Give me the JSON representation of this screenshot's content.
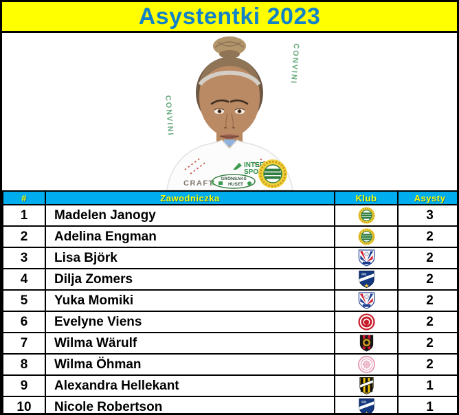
{
  "title": "Asystentki 2023",
  "photo": {
    "description": "portrait of player in white club shirt with green details",
    "jersey": {
      "sleeve_text": "CONVINI",
      "sponsor_top": "INTER",
      "sponsor_bottom": "SPORT",
      "oval_line1": "GRÖNSAKS",
      "oval_line2": "HUSET",
      "brand": "CRAFT"
    }
  },
  "table": {
    "headers": {
      "rank": "#",
      "player": "Zawodniczka",
      "club": "Klub",
      "assists": "Asysty"
    },
    "rows": [
      {
        "rank": "1",
        "player": "Madelen Janogy",
        "club_badge": "hammarby",
        "assists": "3"
      },
      {
        "rank": "2",
        "player": "Adelina Engman",
        "club_badge": "hammarby",
        "assists": "2"
      },
      {
        "rank": "3",
        "player": "Lisa Björk",
        "club_badge": "linkoping",
        "assists": "2"
      },
      {
        "rank": "4",
        "player": "Dilja Zomers",
        "club_badge": "ifk-norrkoping",
        "assists": "2"
      },
      {
        "rank": "5",
        "player": "Yuka Momiki",
        "club_badge": "linkoping",
        "assists": "2"
      },
      {
        "rank": "6",
        "player": "Evelyne Viens",
        "club_badge": "kristianstad",
        "assists": "2"
      },
      {
        "rank": "7",
        "player": "Wilma Wärulf",
        "club_badge": "brommapojkarna",
        "assists": "2"
      },
      {
        "rank": "8",
        "player": "Wilma Öhman",
        "club_badge": "uppsala-pink",
        "assists": "2"
      },
      {
        "rank": "9",
        "player": "Alexandra Hellekant",
        "club_badge": "hacken",
        "assists": "1"
      },
      {
        "rank": "10",
        "player": "Nicole Robertson",
        "club_badge": "ifk-norrkoping",
        "assists": "1"
      }
    ]
  },
  "badges": {
    "ifk_monogram": "IFK"
  },
  "colors": {
    "title_bg": "#FFFF00",
    "title_text": "#1181C8",
    "header_bg": "#00AEEF",
    "header_text": "#FFFF00",
    "border": "#000000",
    "row_bg": "#FFFFFF",
    "text": "#000000"
  },
  "chart_data": {
    "type": "table",
    "title": "Asystentki 2023",
    "columns": [
      "#",
      "Zawodniczka",
      "Klub",
      "Asysty"
    ],
    "rows": [
      [
        1,
        "Madelen Janogy",
        "hammarby-badge",
        3
      ],
      [
        2,
        "Adelina Engman",
        "hammarby-badge",
        2
      ],
      [
        3,
        "Lisa Björk",
        "linkoping-badge",
        2
      ],
      [
        4,
        "Dilja Zomers",
        "ifk-norrkoping-badge",
        2
      ],
      [
        5,
        "Yuka Momiki",
        "linkoping-badge",
        2
      ],
      [
        6,
        "Evelyne Viens",
        "kristianstad-badge",
        2
      ],
      [
        7,
        "Wilma Wärulf",
        "brommapojkarna-badge",
        2
      ],
      [
        8,
        "Wilma Öhman",
        "uppsala-pink-badge",
        2
      ],
      [
        9,
        "Alexandra Hellekant",
        "hacken-badge",
        1
      ],
      [
        10,
        "Nicole Robertson",
        "ifk-norrkoping-badge",
        1
      ]
    ],
    "legend_position": "none",
    "grid": true
  }
}
